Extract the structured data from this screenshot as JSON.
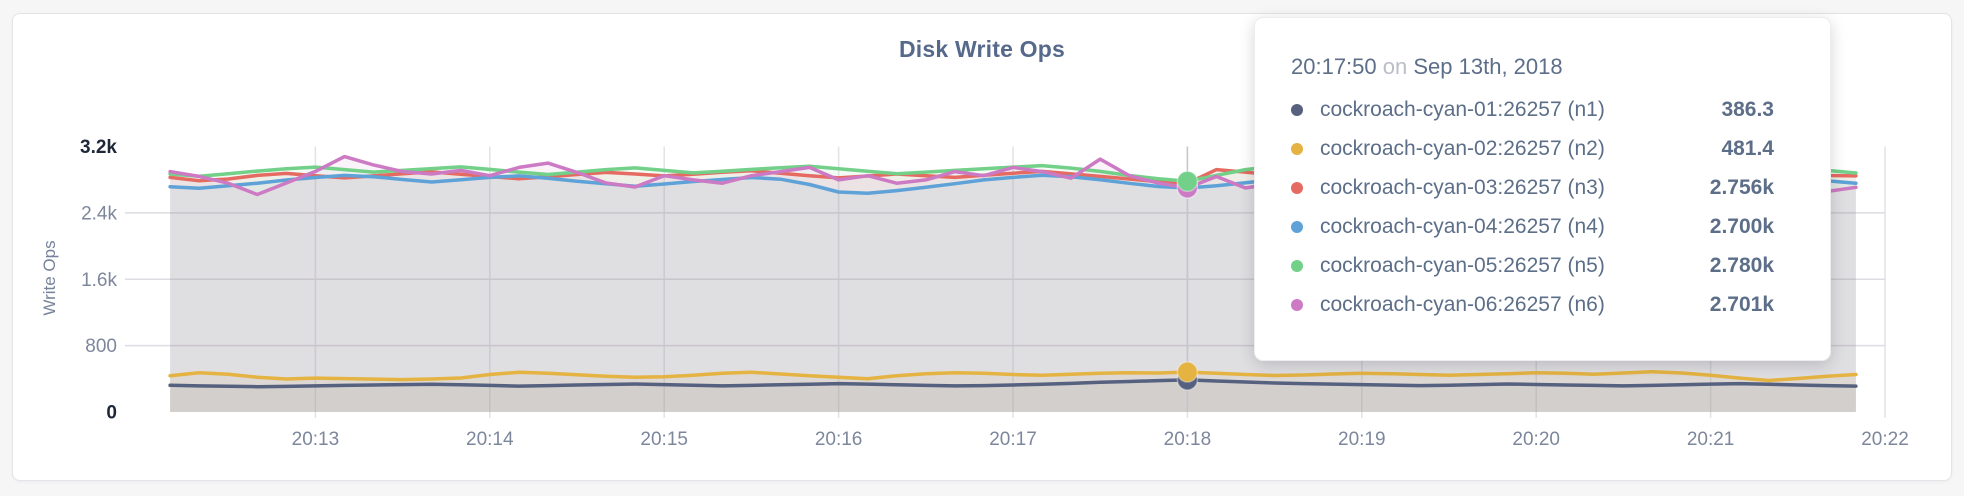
{
  "page": {
    "background": "#f6f6f7",
    "card_background": "#ffffff",
    "card_border": "#e4e4e6"
  },
  "tooltip": {
    "time": "20:17:50",
    "conjunction": "on",
    "date": "Sep 13th, 2018",
    "rows": [
      {
        "label": "cockroach-cyan-01:26257 (n1)",
        "value": "386.3",
        "color": "#56617f"
      },
      {
        "label": "cockroach-cyan-02:26257 (n2)",
        "value": "481.4",
        "color": "#e4b342"
      },
      {
        "label": "cockroach-cyan-03:26257 (n3)",
        "value": "2.756k",
        "color": "#e56b62"
      },
      {
        "label": "cockroach-cyan-04:26257 (n4)",
        "value": "2.700k",
        "color": "#5ea2d8"
      },
      {
        "label": "cockroach-cyan-05:26257 (n5)",
        "value": "2.780k",
        "color": "#72d088"
      },
      {
        "label": "cockroach-cyan-06:26257 (n6)",
        "value": "2.701k",
        "color": "#cd7ac4"
      }
    ]
  },
  "chart_data": {
    "type": "line",
    "title": "Disk Write Ops",
    "ylabel": "Write Ops",
    "xlabel": "",
    "ylim": [
      0,
      3200
    ],
    "grid": true,
    "legend_position": "tooltip",
    "area_fill_opacity": 0.09,
    "grid_color_vertical": "#e3e3e7",
    "grid_color_horizontal": "#dcdce1",
    "hover_line_color": "#c3c6cc",
    "tick_color": "#7d879c",
    "tick_color_emphasis": "#1e2738",
    "y_ticks": [
      {
        "value": 0,
        "label": "0",
        "emphasis": true
      },
      {
        "value": 800,
        "label": "800",
        "emphasis": false
      },
      {
        "value": 1600,
        "label": "1.6k",
        "emphasis": false
      },
      {
        "value": 2400,
        "label": "2.4k",
        "emphasis": false
      },
      {
        "value": 3200,
        "label": "3.2k",
        "emphasis": true
      }
    ],
    "x_domain_seconds": [
      0,
      600
    ],
    "x_domain_start_time": "20:12:00",
    "x_first_offset_seconds": 10,
    "x_interval_seconds": 10,
    "x_ticks": [
      {
        "seconds": 60,
        "label": "20:13"
      },
      {
        "seconds": 120,
        "label": "20:14"
      },
      {
        "seconds": 180,
        "label": "20:15"
      },
      {
        "seconds": 240,
        "label": "20:16"
      },
      {
        "seconds": 300,
        "label": "20:17"
      },
      {
        "seconds": 360,
        "label": "20:18"
      },
      {
        "seconds": 420,
        "label": "20:19"
      },
      {
        "seconds": 480,
        "label": "20:20"
      },
      {
        "seconds": 540,
        "label": "20:21"
      },
      {
        "seconds": 600,
        "label": "20:22"
      }
    ],
    "hover_index": 35,
    "hover_time": "20:17:50",
    "series": [
      {
        "name": "cockroach-cyan-01:26257 (n1)",
        "color": "#56617f",
        "values": [
          322,
          315,
          310,
          305,
          308,
          314,
          320,
          326,
          330,
          334,
          328,
          320,
          312,
          318,
          325,
          332,
          338,
          330,
          322,
          315,
          320,
          328,
          335,
          342,
          336,
          328,
          320,
          314,
          318,
          326,
          334,
          345,
          358,
          368,
          378,
          386.3,
          374,
          362,
          350,
          342,
          336,
          330,
          324,
          318,
          322,
          330,
          338,
          332,
          326,
          320,
          315,
          320,
          328,
          336,
          342,
          335,
          326,
          318,
          312
        ]
      },
      {
        "name": "cockroach-cyan-02:26257 (n2)",
        "color": "#e4b342",
        "values": [
          438,
          472,
          455,
          420,
          398,
          408,
          402,
          396,
          390,
          398,
          410,
          452,
          478,
          466,
          448,
          430,
          418,
          426,
          442,
          466,
          478,
          458,
          436,
          418,
          400,
          438,
          462,
          474,
          466,
          452,
          444,
          456,
          468,
          474,
          470,
          481.4,
          468,
          452,
          440,
          446,
          458,
          468,
          462,
          452,
          444,
          452,
          462,
          472,
          466,
          456,
          470,
          486,
          470,
          444,
          408,
          380,
          404,
          432,
          452
        ]
      },
      {
        "name": "cockroach-cyan-03:26257 (n3)",
        "color": "#e56b62",
        "values": [
          2828,
          2788,
          2808,
          2852,
          2876,
          2848,
          2822,
          2846,
          2872,
          2894,
          2866,
          2838,
          2812,
          2836,
          2862,
          2888,
          2868,
          2846,
          2866,
          2890,
          2908,
          2878,
          2848,
          2822,
          2844,
          2868,
          2848,
          2828,
          2854,
          2878,
          2900,
          2870,
          2840,
          2808,
          2776,
          2756,
          2922,
          2892,
          2856,
          2826,
          2850,
          2876,
          2856,
          2830,
          2812,
          2840,
          2866,
          2846,
          2826,
          2854,
          2880,
          2862,
          2836,
          2814,
          2836,
          2860,
          2878,
          2850,
          2846
        ]
      },
      {
        "name": "cockroach-cyan-04:26257 (n4)",
        "color": "#5ea2d8",
        "values": [
          2716,
          2696,
          2726,
          2758,
          2796,
          2826,
          2852,
          2836,
          2802,
          2772,
          2800,
          2828,
          2846,
          2818,
          2782,
          2752,
          2722,
          2748,
          2778,
          2802,
          2826,
          2806,
          2742,
          2652,
          2636,
          2668,
          2708,
          2752,
          2798,
          2828,
          2854,
          2836,
          2800,
          2756,
          2718,
          2700,
          2726,
          2762,
          2800,
          2836,
          2810,
          2778,
          2748,
          2730,
          2758,
          2788,
          2816,
          2798,
          2768,
          2748,
          2780,
          2806,
          2826,
          2798,
          2768,
          2742,
          2762,
          2788,
          2758
        ]
      },
      {
        "name": "cockroach-cyan-05:26257 (n5)",
        "color": "#72d088",
        "values": [
          2868,
          2842,
          2872,
          2904,
          2932,
          2952,
          2922,
          2892,
          2912,
          2934,
          2954,
          2924,
          2892,
          2862,
          2892,
          2922,
          2942,
          2912,
          2882,
          2902,
          2924,
          2944,
          2962,
          2932,
          2902,
          2872,
          2892,
          2912,
          2932,
          2952,
          2970,
          2940,
          2900,
          2850,
          2812,
          2780,
          2852,
          2922,
          2962,
          2930,
          2900,
          2922,
          2942,
          2912,
          2882,
          2902,
          2922,
          2942,
          2912,
          2892,
          2912,
          2932,
          2952,
          2920,
          2890,
          2870,
          2892,
          2912,
          2880
        ]
      },
      {
        "name": "cockroach-cyan-06:26257 (n6)",
        "color": "#cd7ac4",
        "values": [
          2898,
          2840,
          2758,
          2622,
          2760,
          2900,
          3078,
          2978,
          2898,
          2868,
          2912,
          2848,
          2948,
          3000,
          2888,
          2760,
          2712,
          2848,
          2798,
          2758,
          2848,
          2898,
          2948,
          2798,
          2848,
          2758,
          2798,
          2898,
          2848,
          2948,
          2898,
          2818,
          3048,
          2848,
          2760,
          2701,
          2838,
          2700,
          2758,
          2808,
          2858,
          2712,
          2758,
          2808,
          2848,
          2712,
          2758,
          2898,
          2848,
          2808,
          2758,
          2848,
          2948,
          3038,
          2888,
          2758,
          2808,
          2658,
          2708
        ]
      }
    ]
  }
}
